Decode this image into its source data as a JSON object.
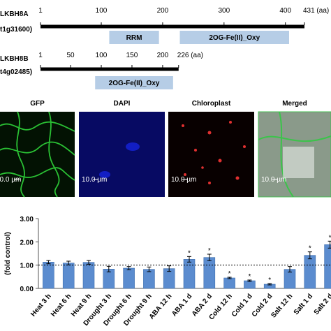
{
  "protein_diagrams": [
    {
      "name": "LKBH8A",
      "locus": "t1g31600)",
      "length": 431,
      "ticks": [
        1,
        100,
        200,
        300,
        400,
        {
          "value": 431,
          "label": "431 (aa)"
        }
      ],
      "domains": [
        {
          "label": "RRM",
          "start": 113,
          "end": 194
        },
        {
          "label": "2OG-Fe(II)_Oxy",
          "start": 228,
          "end": 406
        }
      ]
    },
    {
      "name": "LKBH8B",
      "locus": "t4g02485)",
      "length": 226,
      "ticks": [
        1,
        50,
        100,
        150,
        200,
        {
          "value": 226,
          "label": "226 (aa)"
        }
      ],
      "domains": [
        {
          "label": "2OG-Fe(II)_Oxy",
          "start": 90,
          "end": 217
        }
      ]
    }
  ],
  "microscopy": {
    "panels": [
      "GFP",
      "DAPI",
      "Chloroplast",
      "Merged"
    ],
    "scale_bar": "10.0 µm"
  },
  "chart_data": {
    "type": "bar",
    "y_label": "(fold control)",
    "categories": [
      "Heat 3 h",
      "Heat 6 h",
      "Heat 9 h",
      "Drought 3 h",
      "Drought 6 h",
      "Drought 9 h",
      "ABA 12 h",
      "ABA 1 d",
      "ABA 2 d",
      "Cold 12 h",
      "Cold 1 d",
      "Cold 2 d",
      "Salt 12 h",
      "Salt 1 d",
      "Salt 2 d"
    ],
    "values": [
      1.13,
      1.09,
      1.12,
      0.83,
      0.87,
      0.82,
      0.85,
      1.25,
      1.33,
      0.45,
      0.33,
      0.18,
      0.82,
      1.42,
      1.88
    ],
    "errors": [
      0.07,
      0.08,
      0.08,
      0.12,
      0.07,
      0.1,
      0.12,
      0.12,
      0.14,
      0.03,
      0.03,
      0.03,
      0.12,
      0.15,
      0.15
    ],
    "color": "#5b8ccf",
    "ylim": [
      0,
      3
    ],
    "yticks": [
      {
        "value": 0,
        "label": "0.00"
      },
      {
        "value": 1,
        "label": "1.00"
      },
      {
        "value": 2,
        "label": "2.00"
      },
      {
        "value": 3,
        "label": "3.00"
      }
    ],
    "reference_line": 1,
    "annotations": [
      {
        "text": "*",
        "category": "ABA 1 d"
      },
      {
        "text": "*",
        "category": "ABA 2 d"
      },
      {
        "text": "*",
        "category": "Cold 12 h"
      },
      {
        "text": "*",
        "category": "Cold 1 d"
      },
      {
        "text": "*",
        "category": "Cold 2 d"
      },
      {
        "text": "*",
        "category": "Salt 1 d"
      },
      {
        "text": "*",
        "category": "Salt 2 d"
      }
    ]
  }
}
